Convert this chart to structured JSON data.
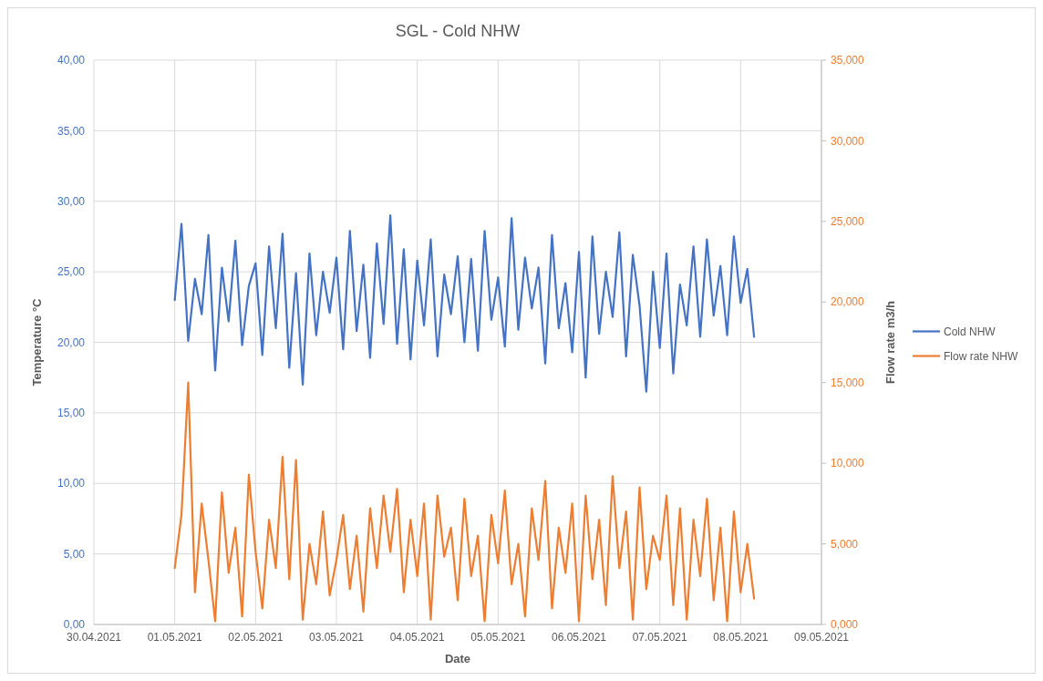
{
  "chart_data": {
    "type": "line",
    "title": "SGL - Cold NHW",
    "xlabel": "Date",
    "ylabel": "Temperature  °C",
    "y2label": "Flow rate  m3/h",
    "x": [
      "2021-05-01T00:00",
      "2021-05-01T02:00",
      "2021-05-01T04:00",
      "2021-05-01T06:00",
      "2021-05-01T08:00",
      "2021-05-01T10:00",
      "2021-05-01T12:00",
      "2021-05-01T14:00",
      "2021-05-01T16:00",
      "2021-05-01T18:00",
      "2021-05-01T20:00",
      "2021-05-01T22:00",
      "2021-05-02T00:00",
      "2021-05-02T02:00",
      "2021-05-02T04:00",
      "2021-05-02T06:00",
      "2021-05-02T08:00",
      "2021-05-02T10:00",
      "2021-05-02T12:00",
      "2021-05-02T14:00",
      "2021-05-02T16:00",
      "2021-05-02T18:00",
      "2021-05-02T20:00",
      "2021-05-02T22:00",
      "2021-05-03T00:00",
      "2021-05-03T02:00",
      "2021-05-03T04:00",
      "2021-05-03T06:00",
      "2021-05-03T08:00",
      "2021-05-03T10:00",
      "2021-05-03T12:00",
      "2021-05-03T14:00",
      "2021-05-03T16:00",
      "2021-05-03T18:00",
      "2021-05-03T20:00",
      "2021-05-03T22:00",
      "2021-05-04T00:00",
      "2021-05-04T02:00",
      "2021-05-04T04:00",
      "2021-05-04T06:00",
      "2021-05-04T08:00",
      "2021-05-04T10:00",
      "2021-05-04T12:00",
      "2021-05-04T14:00",
      "2021-05-04T16:00",
      "2021-05-04T18:00",
      "2021-05-04T20:00",
      "2021-05-04T22:00",
      "2021-05-05T00:00",
      "2021-05-05T02:00",
      "2021-05-05T04:00",
      "2021-05-05T06:00",
      "2021-05-05T08:00",
      "2021-05-05T10:00",
      "2021-05-05T12:00",
      "2021-05-05T14:00",
      "2021-05-05T16:00",
      "2021-05-05T18:00",
      "2021-05-05T20:00",
      "2021-05-05T22:00",
      "2021-05-06T00:00",
      "2021-05-06T02:00",
      "2021-05-06T04:00",
      "2021-05-06T06:00",
      "2021-05-06T08:00",
      "2021-05-06T10:00",
      "2021-05-06T12:00",
      "2021-05-06T14:00",
      "2021-05-06T16:00",
      "2021-05-06T18:00",
      "2021-05-06T20:00",
      "2021-05-06T22:00",
      "2021-05-07T00:00",
      "2021-05-07T02:00",
      "2021-05-07T04:00",
      "2021-05-07T06:00",
      "2021-05-07T08:00",
      "2021-05-07T10:00",
      "2021-05-07T12:00",
      "2021-05-07T14:00",
      "2021-05-07T16:00",
      "2021-05-07T18:00",
      "2021-05-07T20:00",
      "2021-05-07T22:00",
      "2021-05-08T00:00",
      "2021-05-08T02:00",
      "2021-05-08T04:00"
    ],
    "series": [
      {
        "name": "Cold NHW",
        "color": "#4472c4",
        "values": [
          23.0,
          28.4,
          20.1,
          24.5,
          22.0,
          27.6,
          18.0,
          25.3,
          21.5,
          27.2,
          19.8,
          24.0,
          25.6,
          19.1,
          26.8,
          21.0,
          27.7,
          18.2,
          24.9,
          17.0,
          26.3,
          20.5,
          25.0,
          22.1,
          26.0,
          19.5,
          27.9,
          20.8,
          25.5,
          18.9,
          27.0,
          21.3,
          29.0,
          19.9,
          26.6,
          18.8,
          25.8,
          21.2,
          27.3,
          19.0,
          24.8,
          22.0,
          26.1,
          20.0,
          25.9,
          19.4,
          27.9,
          21.6,
          24.6,
          19.7,
          28.8,
          20.9,
          26.0,
          22.4,
          25.3,
          18.5,
          27.6,
          21.0,
          24.2,
          19.3,
          26.4,
          17.5,
          27.5,
          20.6,
          25.0,
          21.8,
          27.8,
          19.0,
          26.2,
          22.6,
          16.5,
          25.0,
          19.6,
          26.3,
          17.8,
          24.1,
          21.2,
          26.8,
          20.4,
          27.3,
          21.9,
          25.4,
          20.5,
          27.5,
          22.8,
          25.2,
          20.4
        ]
      },
      {
        "name": "Flow rate NHW",
        "color": "#ed7d31",
        "axis": "y2",
        "values": [
          3.5,
          6.8,
          15.0,
          2.0,
          7.5,
          4.0,
          0.2,
          8.2,
          3.2,
          6.0,
          0.5,
          9.3,
          4.5,
          1.0,
          6.5,
          3.5,
          10.4,
          2.8,
          10.2,
          0.3,
          5.0,
          2.5,
          7.0,
          1.8,
          4.0,
          6.8,
          2.2,
          5.5,
          0.8,
          7.2,
          3.5,
          8.0,
          4.5,
          8.4,
          2.0,
          6.5,
          3.0,
          7.5,
          0.3,
          8.0,
          4.2,
          6.0,
          1.5,
          7.8,
          3.0,
          5.5,
          0.2,
          6.8,
          3.8,
          8.3,
          2.5,
          5.0,
          0.5,
          7.2,
          4.0,
          8.9,
          1.0,
          6.0,
          3.2,
          7.5,
          0.2,
          8.0,
          2.8,
          6.5,
          1.2,
          9.2,
          3.5,
          7.0,
          0.3,
          8.5,
          2.2,
          5.5,
          4.0,
          8.0,
          1.2,
          7.2,
          0.3,
          6.5,
          3.0,
          7.8,
          1.5,
          6.0,
          0.2,
          7.0,
          2.0,
          5.0,
          1.6
        ]
      }
    ],
    "xlim": [
      "2021-04-30",
      "2021-05-09"
    ],
    "xticks": [
      {
        "value": "2021-04-30",
        "label": "30.04.2021"
      },
      {
        "value": "2021-05-01",
        "label": "01.05.2021"
      },
      {
        "value": "2021-05-02",
        "label": "02.05.2021"
      },
      {
        "value": "2021-05-03",
        "label": "03.05.2021"
      },
      {
        "value": "2021-05-04",
        "label": "04.05.2021"
      },
      {
        "value": "2021-05-05",
        "label": "05.05.2021"
      },
      {
        "value": "2021-05-06",
        "label": "06.05.2021"
      },
      {
        "value": "2021-05-07",
        "label": "07.05.2021"
      },
      {
        "value": "2021-05-08",
        "label": "08.05.2021"
      },
      {
        "value": "2021-05-09",
        "label": "09.05.2021"
      }
    ],
    "ylim": [
      0,
      40
    ],
    "yticks": [
      {
        "value": 0,
        "label": "0,00"
      },
      {
        "value": 5,
        "label": "5,00"
      },
      {
        "value": 10,
        "label": "10,00"
      },
      {
        "value": 15,
        "label": "15,00"
      },
      {
        "value": 20,
        "label": "20,00"
      },
      {
        "value": 25,
        "label": "25,00"
      },
      {
        "value": 30,
        "label": "30,00"
      },
      {
        "value": 35,
        "label": "35,00"
      },
      {
        "value": 40,
        "label": "40,00"
      }
    ],
    "y2lim": [
      0,
      35
    ],
    "y2ticks": [
      {
        "value": 0,
        "label": "0,000"
      },
      {
        "value": 5,
        "label": "5,000"
      },
      {
        "value": 10,
        "label": "10,000"
      },
      {
        "value": 15,
        "label": "15,000"
      },
      {
        "value": 20,
        "label": "20,000"
      },
      {
        "value": 25,
        "label": "25,000"
      },
      {
        "value": 30,
        "label": "30,000"
      },
      {
        "value": 35,
        "label": "35,000"
      }
    ],
    "grid": true,
    "legend": "right",
    "line_style": "solid"
  }
}
